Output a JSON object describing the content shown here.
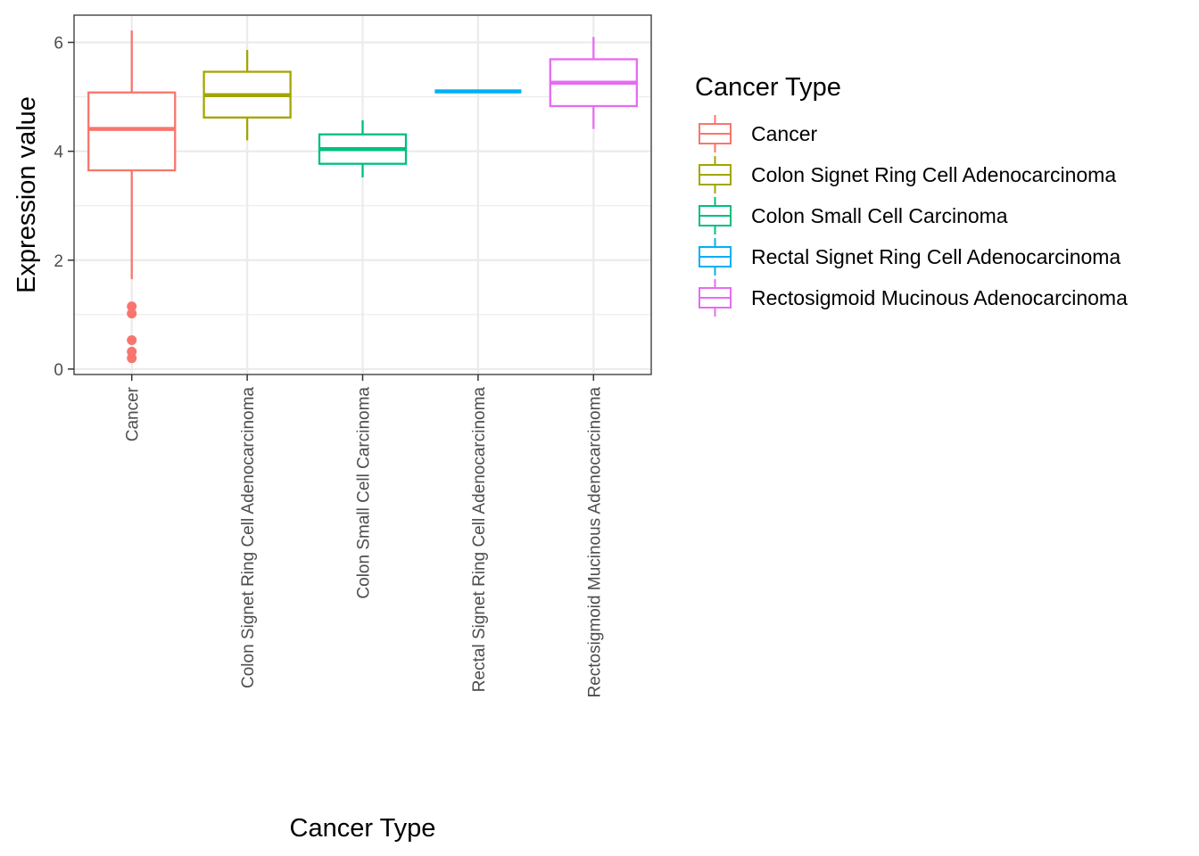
{
  "chart_data": {
    "type": "box",
    "xlabel": "Cancer Type",
    "ylabel": "Expression value",
    "ylim": [
      -0.1,
      6.5
    ],
    "yticks": [
      0,
      2,
      4,
      6
    ],
    "grid": true,
    "legend": {
      "title": "Cancer Type",
      "placement": "right"
    },
    "categories": [
      "Cancer",
      "Colon Signet Ring Cell Adenocarcinoma",
      "Colon Small Cell Carcinoma",
      "Rectal Signet Ring Cell Adenocarcinoma",
      "Rectosigmoid Mucinous Adenocarcinoma"
    ],
    "boxes": [
      {
        "category": "Cancer",
        "color": "#F8766D",
        "whisker_low": 1.65,
        "q1": 3.65,
        "median": 4.41,
        "q3": 5.08,
        "whisker_high": 6.22,
        "outliers": [
          1.15,
          1.02,
          0.53,
          0.32,
          0.2
        ]
      },
      {
        "category": "Colon Signet Ring Cell Adenocarcinoma",
        "color": "#A3A500",
        "whisker_low": 4.2,
        "q1": 4.62,
        "median": 5.03,
        "q3": 5.46,
        "whisker_high": 5.86,
        "outliers": []
      },
      {
        "category": "Colon Small Cell Carcinoma",
        "color": "#00BF7D",
        "whisker_low": 3.52,
        "q1": 3.77,
        "median": 4.04,
        "q3": 4.31,
        "whisker_high": 4.57,
        "outliers": []
      },
      {
        "category": "Rectal Signet Ring Cell Adenocarcinoma",
        "color": "#00B0F6",
        "whisker_low": 5.1,
        "q1": 5.1,
        "median": 5.1,
        "q3": 5.1,
        "whisker_high": 5.1,
        "outliers": []
      },
      {
        "category": "Rectosigmoid Mucinous Adenocarcinoma",
        "color": "#E76BF3",
        "whisker_low": 4.41,
        "q1": 4.83,
        "median": 5.26,
        "q3": 5.69,
        "whisker_high": 6.1,
        "outliers": []
      }
    ]
  }
}
